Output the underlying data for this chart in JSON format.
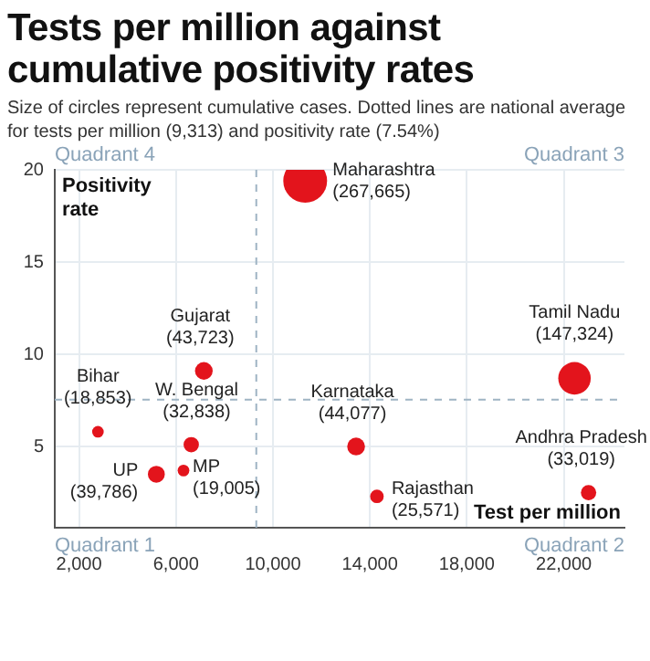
{
  "chart_data": {
    "type": "bubble",
    "title": "Tests per million against cumulative positivity rates",
    "subtitle": "Size of circles represent cumulative cases. Dotted lines are national average for tests per million (9,313) and positivity rate (7.54%)",
    "xlabel": "Test per million",
    "ylabel": "Positivity rate",
    "x": [
      11330,
      7150,
      2780,
      6630,
      5190,
      6310,
      13430,
      14290,
      22440,
      23020
    ],
    "values": [
      19.4,
      9.1,
      5.8,
      5.1,
      3.5,
      3.7,
      5.0,
      2.3,
      8.7,
      2.5
    ],
    "sizes": [
      1,
      0.163,
      0.07,
      0.123,
      0.149,
      0.071,
      0.165,
      0.096,
      0.55,
      0.123
    ],
    "color": "#e3141c",
    "xlim": [
      1000,
      24500
    ],
    "ylim": [
      0.6,
      20
    ],
    "xticks": [
      {
        "value": 2000,
        "label": "2,000"
      },
      {
        "value": 6000,
        "label": "6,000"
      },
      {
        "value": 10000,
        "label": "10,000"
      },
      {
        "value": 14000,
        "label": "14,000"
      },
      {
        "value": 18000,
        "label": "18,000"
      },
      {
        "value": 22000,
        "label": "22,000"
      }
    ],
    "yticks": [
      5,
      10,
      15,
      20
    ],
    "grid": true,
    "legend": false,
    "ref_lines": [
      {
        "axis": "x",
        "value": 9313,
        "color": "#9fb4c4",
        "line_style": "dashed"
      },
      {
        "axis": "y",
        "value": 7.54,
        "color": "#9fb4c4",
        "line_style": "dashed"
      }
    ],
    "annotations": [
      "Quadrant 4",
      "Quadrant 3",
      "Quadrant 1",
      "Quadrant 2",
      {
        "text": "Maharashtra\n(267,665)",
        "x": 11330,
        "y": 19.4
      },
      {
        "text": "Gujarat\n(43,723)",
        "x": 7150,
        "y": 9.1
      },
      {
        "text": "Bihar\n(18,853)",
        "x": 2780,
        "y": 5.8
      },
      {
        "text": "W. Bengal\n(32,838)",
        "x": 6630,
        "y": 5.1
      },
      {
        "text": "UP\n(39,786)",
        "x": 5190,
        "y": 3.5
      },
      {
        "text": "MP\n(19,005)",
        "x": 6310,
        "y": 3.7
      },
      {
        "text": "Karnataka\n(44,077)",
        "x": 13430,
        "y": 5.0
      },
      {
        "text": "Rajasthan\n(25,571)",
        "x": 14290,
        "y": 2.3
      },
      {
        "text": "Tamil Nadu\n(147,324)",
        "x": 22440,
        "y": 8.7
      },
      {
        "text": "Andhra Pradesh\n(33,019)",
        "x": 23020,
        "y": 2.5
      }
    ]
  }
}
